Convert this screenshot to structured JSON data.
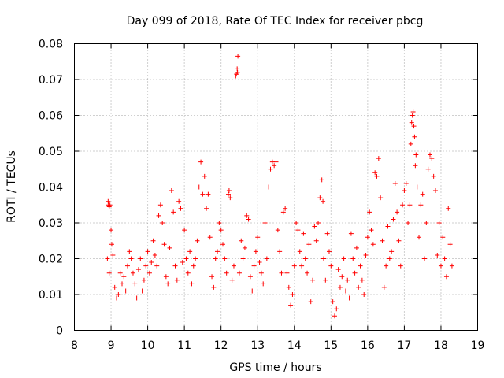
{
  "chart_data": {
    "type": "scatter",
    "title": "Day 099 of 2018, Rate Of TEC Index for receiver pbcg",
    "xlabel": "GPS time / hours",
    "ylabel": "ROTI / TECUs",
    "xlim": [
      8,
      19
    ],
    "ylim": [
      0,
      0.08
    ],
    "x_ticks": [
      "8",
      "9",
      "10",
      "11",
      "12",
      "13",
      "14",
      "15",
      "16",
      "17",
      "18",
      "19"
    ],
    "y_ticks": [
      "0",
      "0.01",
      "0.02",
      "0.03",
      "0.04",
      "0.05",
      "0.06",
      "0.07",
      "0.08"
    ],
    "grid": true,
    "marker": "+",
    "color": "#ff0000",
    "series": [
      {
        "name": "ROTI",
        "points": [
          [
            8.92,
            0.036
          ],
          [
            8.93,
            0.035
          ],
          [
            8.95,
            0.0345
          ],
          [
            8.97,
            0.035
          ],
          [
            8.9,
            0.02
          ],
          [
            8.95,
            0.016
          ],
          [
            9.0,
            0.028
          ],
          [
            9.02,
            0.024
          ],
          [
            9.05,
            0.021
          ],
          [
            9.1,
            0.012
          ],
          [
            9.15,
            0.009
          ],
          [
            9.2,
            0.01
          ],
          [
            9.25,
            0.016
          ],
          [
            9.3,
            0.013
          ],
          [
            9.35,
            0.015
          ],
          [
            9.4,
            0.011
          ],
          [
            9.45,
            0.018
          ],
          [
            9.5,
            0.022
          ],
          [
            9.55,
            0.02
          ],
          [
            9.6,
            0.016
          ],
          [
            9.65,
            0.013
          ],
          [
            9.7,
            0.009
          ],
          [
            9.75,
            0.017
          ],
          [
            9.8,
            0.02
          ],
          [
            9.85,
            0.011
          ],
          [
            9.9,
            0.014
          ],
          [
            9.95,
            0.018
          ],
          [
            10.0,
            0.022
          ],
          [
            10.05,
            0.016
          ],
          [
            10.1,
            0.019
          ],
          [
            10.15,
            0.025
          ],
          [
            10.2,
            0.021
          ],
          [
            10.25,
            0.018
          ],
          [
            10.3,
            0.032
          ],
          [
            10.35,
            0.035
          ],
          [
            10.4,
            0.03
          ],
          [
            10.45,
            0.024
          ],
          [
            10.5,
            0.015
          ],
          [
            10.55,
            0.013
          ],
          [
            10.6,
            0.023
          ],
          [
            10.65,
            0.039
          ],
          [
            10.7,
            0.033
          ],
          [
            10.75,
            0.018
          ],
          [
            10.8,
            0.014
          ],
          [
            10.85,
            0.036
          ],
          [
            10.9,
            0.034
          ],
          [
            10.95,
            0.019
          ],
          [
            11.0,
            0.028
          ],
          [
            11.05,
            0.02
          ],
          [
            11.1,
            0.016
          ],
          [
            11.15,
            0.022
          ],
          [
            11.2,
            0.013
          ],
          [
            11.25,
            0.018
          ],
          [
            11.3,
            0.02
          ],
          [
            11.35,
            0.025
          ],
          [
            11.4,
            0.04
          ],
          [
            11.45,
            0.047
          ],
          [
            11.5,
            0.038
          ],
          [
            11.55,
            0.043
          ],
          [
            11.6,
            0.034
          ],
          [
            11.65,
            0.038
          ],
          [
            11.7,
            0.026
          ],
          [
            11.75,
            0.015
          ],
          [
            11.8,
            0.012
          ],
          [
            11.85,
            0.02
          ],
          [
            11.9,
            0.022
          ],
          [
            11.95,
            0.03
          ],
          [
            12.0,
            0.028
          ],
          [
            12.05,
            0.024
          ],
          [
            12.1,
            0.02
          ],
          [
            12.15,
            0.016
          ],
          [
            12.2,
            0.038
          ],
          [
            12.22,
            0.039
          ],
          [
            12.25,
            0.037
          ],
          [
            12.3,
            0.014
          ],
          [
            12.35,
            0.018
          ],
          [
            12.4,
            0.071
          ],
          [
            12.42,
            0.0715
          ],
          [
            12.44,
            0.073
          ],
          [
            12.46,
            0.0765
          ],
          [
            12.45,
            0.072
          ],
          [
            12.5,
            0.016
          ],
          [
            12.55,
            0.025
          ],
          [
            12.6,
            0.02
          ],
          [
            12.65,
            0.023
          ],
          [
            12.7,
            0.032
          ],
          [
            12.75,
            0.031
          ],
          [
            12.8,
            0.015
          ],
          [
            12.85,
            0.011
          ],
          [
            12.9,
            0.018
          ],
          [
            12.95,
            0.022
          ],
          [
            13.0,
            0.026
          ],
          [
            13.05,
            0.019
          ],
          [
            13.1,
            0.016
          ],
          [
            13.15,
            0.013
          ],
          [
            13.2,
            0.03
          ],
          [
            13.25,
            0.02
          ],
          [
            13.3,
            0.04
          ],
          [
            13.35,
            0.045
          ],
          [
            13.4,
            0.047
          ],
          [
            13.45,
            0.046
          ],
          [
            13.5,
            0.047
          ],
          [
            13.55,
            0.028
          ],
          [
            13.6,
            0.022
          ],
          [
            13.65,
            0.016
          ],
          [
            13.7,
            0.033
          ],
          [
            13.75,
            0.034
          ],
          [
            13.8,
            0.016
          ],
          [
            13.85,
            0.012
          ],
          [
            13.9,
            0.007
          ],
          [
            13.95,
            0.01
          ],
          [
            14.0,
            0.018
          ],
          [
            14.05,
            0.03
          ],
          [
            14.1,
            0.028
          ],
          [
            14.15,
            0.022
          ],
          [
            14.2,
            0.018
          ],
          [
            14.25,
            0.027
          ],
          [
            14.3,
            0.02
          ],
          [
            14.35,
            0.016
          ],
          [
            14.4,
            0.024
          ],
          [
            14.45,
            0.008
          ],
          [
            14.5,
            0.014
          ],
          [
            14.55,
            0.029
          ],
          [
            14.6,
            0.025
          ],
          [
            14.65,
            0.03
          ],
          [
            14.7,
            0.037
          ],
          [
            14.75,
            0.042
          ],
          [
            14.78,
            0.036
          ],
          [
            14.8,
            0.02
          ],
          [
            14.85,
            0.014
          ],
          [
            14.9,
            0.027
          ],
          [
            14.95,
            0.022
          ],
          [
            15.0,
            0.018
          ],
          [
            15.05,
            0.008
          ],
          [
            15.1,
            0.004
          ],
          [
            15.15,
            0.006
          ],
          [
            15.2,
            0.017
          ],
          [
            15.25,
            0.012
          ],
          [
            15.3,
            0.015
          ],
          [
            15.35,
            0.02
          ],
          [
            15.4,
            0.011
          ],
          [
            15.45,
            0.014
          ],
          [
            15.5,
            0.009
          ],
          [
            15.55,
            0.027
          ],
          [
            15.6,
            0.02
          ],
          [
            15.65,
            0.016
          ],
          [
            15.7,
            0.023
          ],
          [
            15.75,
            0.012
          ],
          [
            15.8,
            0.018
          ],
          [
            15.85,
            0.014
          ],
          [
            15.9,
            0.01
          ],
          [
            15.95,
            0.021
          ],
          [
            16.0,
            0.026
          ],
          [
            16.05,
            0.033
          ],
          [
            16.1,
            0.028
          ],
          [
            16.15,
            0.024
          ],
          [
            16.2,
            0.044
          ],
          [
            16.25,
            0.043
          ],
          [
            16.3,
            0.048
          ],
          [
            16.35,
            0.037
          ],
          [
            16.4,
            0.025
          ],
          [
            16.45,
            0.012
          ],
          [
            16.5,
            0.018
          ],
          [
            16.55,
            0.029
          ],
          [
            16.6,
            0.02
          ],
          [
            16.65,
            0.022
          ],
          [
            16.7,
            0.031
          ],
          [
            16.75,
            0.041
          ],
          [
            16.8,
            0.033
          ],
          [
            16.85,
            0.025
          ],
          [
            16.9,
            0.018
          ],
          [
            16.95,
            0.035
          ],
          [
            17.0,
            0.039
          ],
          [
            17.05,
            0.041
          ],
          [
            17.1,
            0.03
          ],
          [
            17.15,
            0.035
          ],
          [
            17.18,
            0.052
          ],
          [
            17.2,
            0.058
          ],
          [
            17.22,
            0.06
          ],
          [
            17.24,
            0.061
          ],
          [
            17.26,
            0.057
          ],
          [
            17.28,
            0.054
          ],
          [
            17.3,
            0.046
          ],
          [
            17.32,
            0.049
          ],
          [
            17.35,
            0.04
          ],
          [
            17.4,
            0.026
          ],
          [
            17.45,
            0.035
          ],
          [
            17.5,
            0.038
          ],
          [
            17.55,
            0.02
          ],
          [
            17.6,
            0.03
          ],
          [
            17.65,
            0.045
          ],
          [
            17.7,
            0.049
          ],
          [
            17.75,
            0.048
          ],
          [
            17.8,
            0.043
          ],
          [
            17.85,
            0.039
          ],
          [
            17.9,
            0.021
          ],
          [
            17.95,
            0.03
          ],
          [
            18.0,
            0.018
          ],
          [
            18.05,
            0.026
          ],
          [
            18.1,
            0.02
          ],
          [
            18.15,
            0.015
          ],
          [
            18.2,
            0.034
          ],
          [
            18.25,
            0.024
          ],
          [
            18.3,
            0.018
          ]
        ]
      }
    ]
  }
}
